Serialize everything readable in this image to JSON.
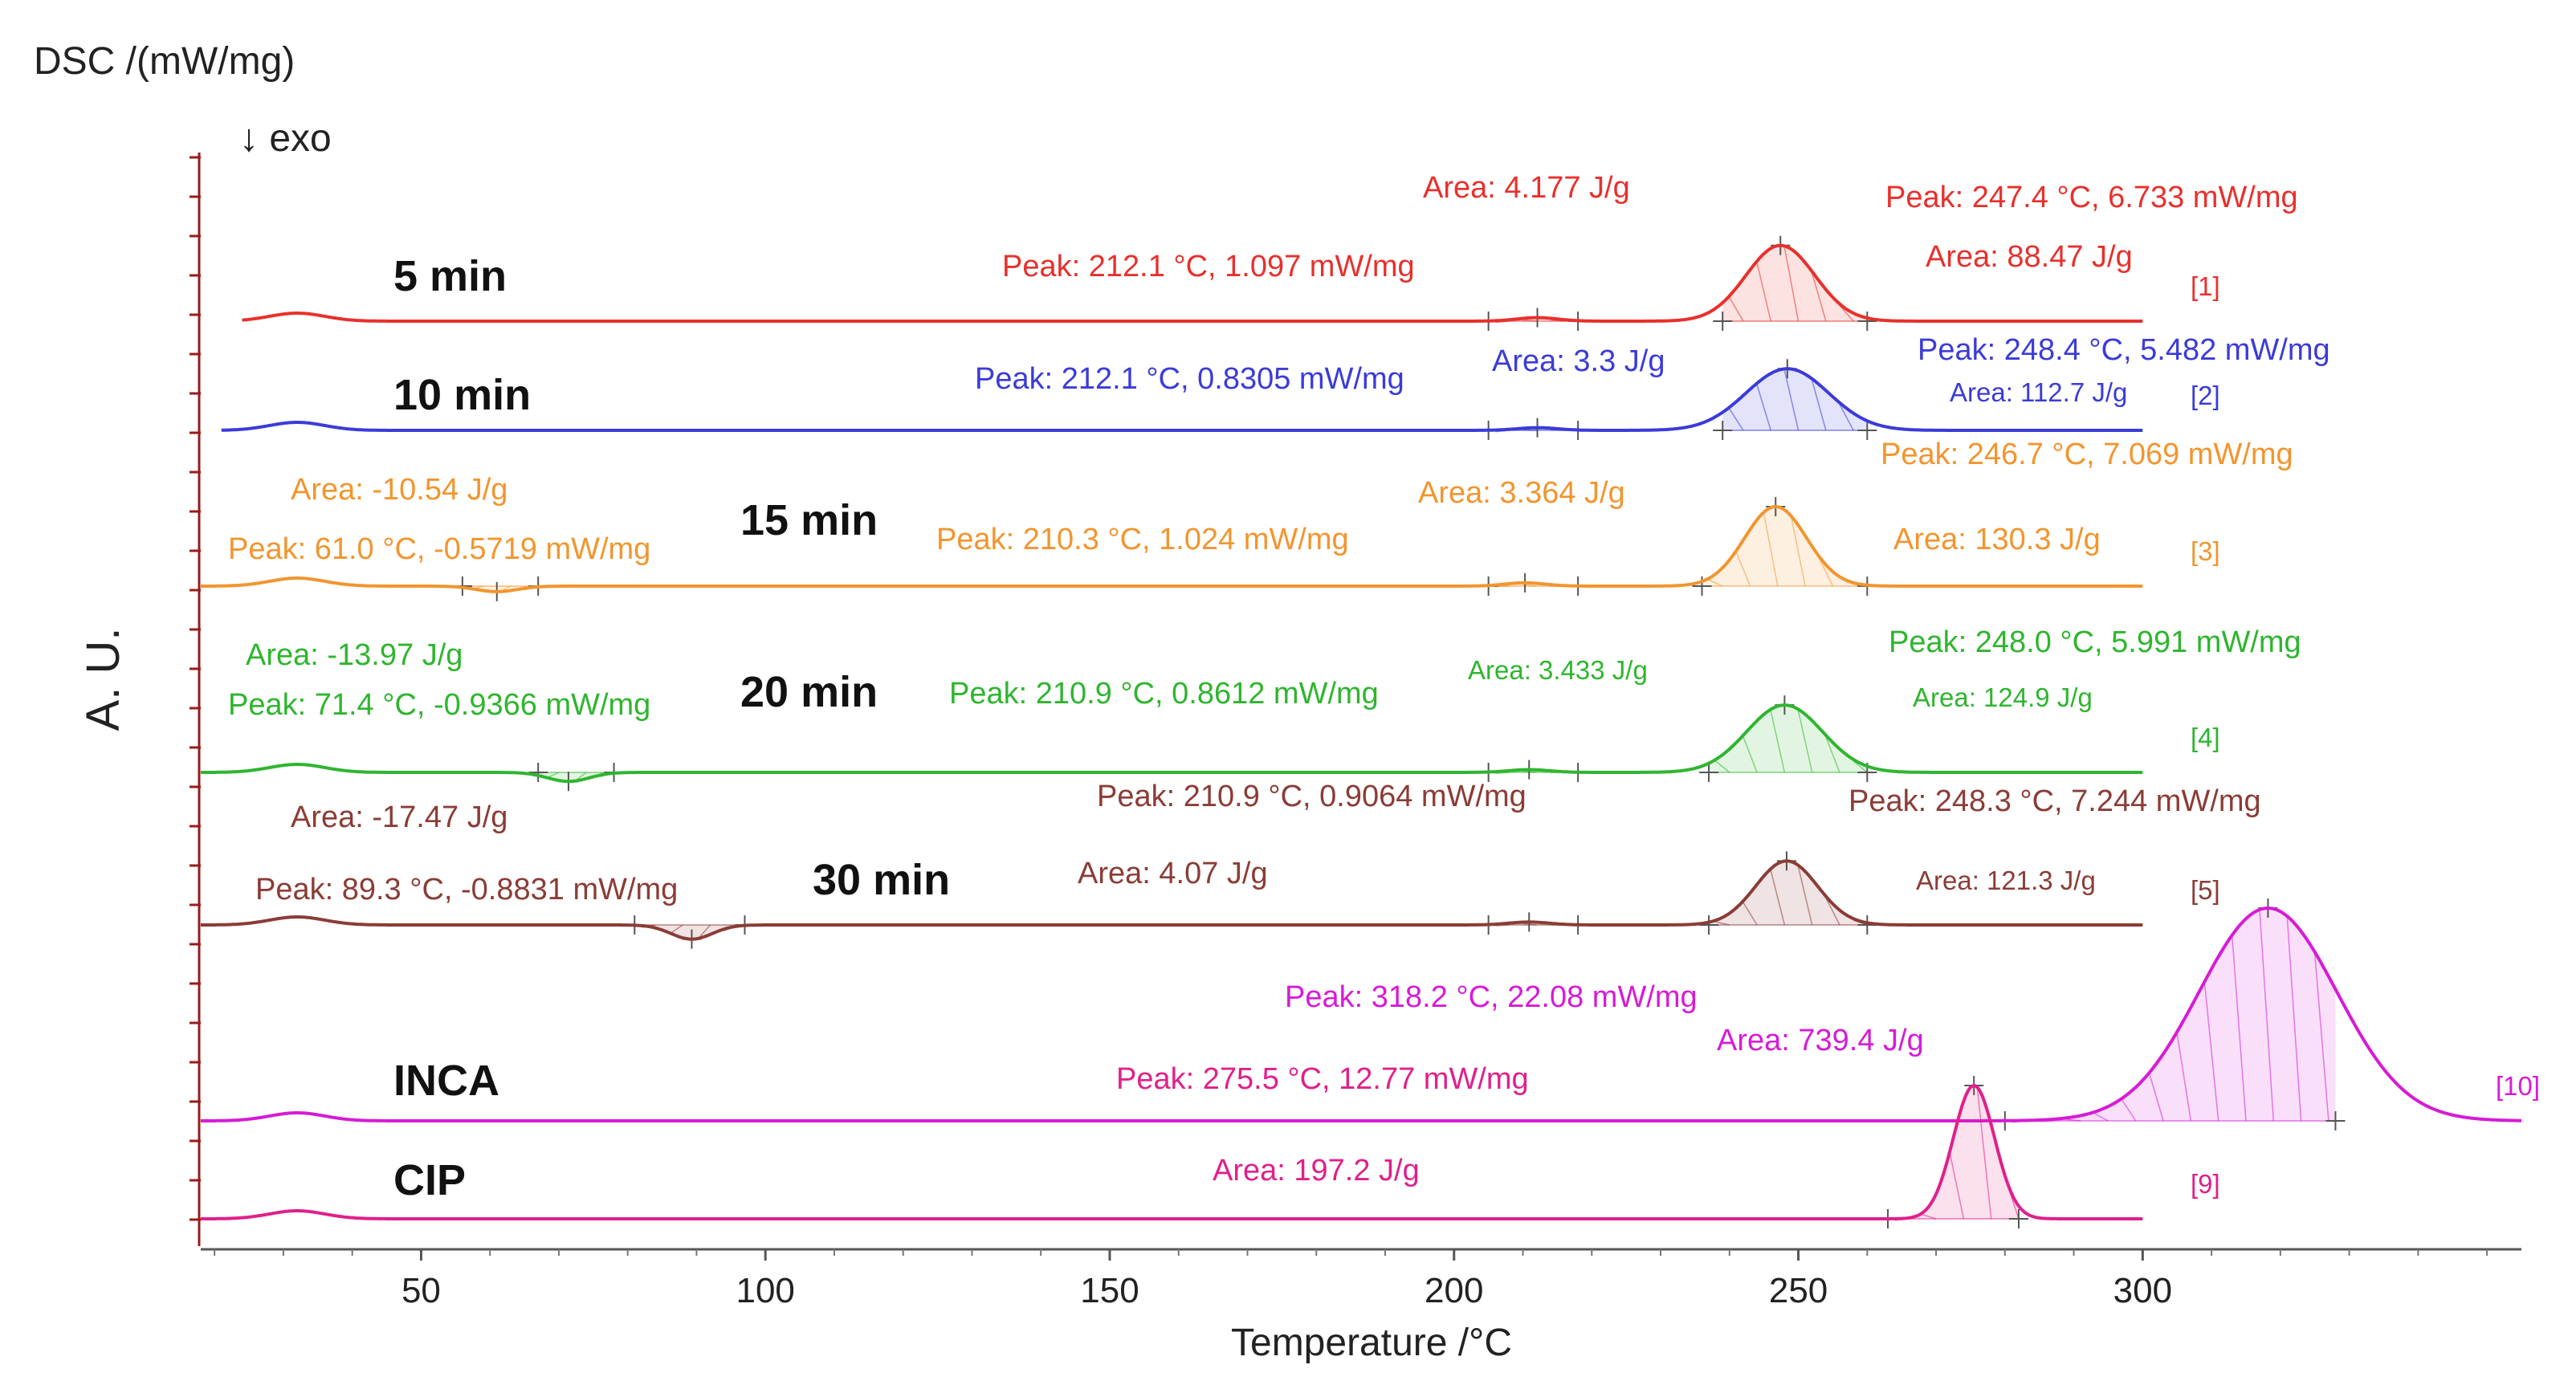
{
  "chart_data": {
    "type": "line",
    "title": "DSC /(mW/mg)",
    "subtitle": "↓ exo",
    "xlabel": "Temperature /°C",
    "ylabel": "A. U.",
    "xlim": [
      18,
      355
    ],
    "xticks": [
      50,
      100,
      150,
      200,
      250,
      300
    ],
    "colors": {
      "axis": "#9b1b1b",
      "m5": "#e8302c",
      "m10": "#3b3bd9",
      "m15": "#f2952e",
      "m20": "#2fb52f",
      "m30": "#8b3c36",
      "inca": "#d61bd6",
      "cip": "#e0208a"
    },
    "series": [
      {
        "id": "m5",
        "name": "5 min",
        "tag": "[1]",
        "x_start": 24,
        "x_end": 300,
        "baseline": 0,
        "peaks": [
          {
            "x": 212.1,
            "y": 1.097,
            "dir": "up",
            "width": 3,
            "scale": 4,
            "area_range": [
              205,
              218
            ]
          },
          {
            "x": 247.4,
            "y": 6.733,
            "dir": "up",
            "width": 5,
            "scale": 14,
            "area_range": [
              239,
              260
            ]
          }
        ],
        "annotations": [
          {
            "text": "Area: 4.177 J/g"
          },
          {
            "text": "Peak: 212.1 °C, 1.097 mW/mg"
          },
          {
            "text": "Peak: 247.4 °C, 6.733 mW/mg"
          },
          {
            "text": "Area: 88.47 J/g"
          }
        ]
      },
      {
        "id": "m10",
        "name": "10 min",
        "tag": "[2]",
        "x_start": 21,
        "x_end": 300,
        "baseline": 0,
        "peaks": [
          {
            "x": 212.1,
            "y": 0.8305,
            "dir": "up",
            "width": 3,
            "scale": 4,
            "area_range": [
              205,
              218
            ]
          },
          {
            "x": 248.4,
            "y": 5.482,
            "dir": "up",
            "width": 6,
            "scale": 14,
            "area_range": [
              239,
              260
            ]
          }
        ],
        "annotations": [
          {
            "text": "Peak: 212.1 °C, 0.8305 mW/mg"
          },
          {
            "text": "Area: 3.3 J/g"
          },
          {
            "text": "Peak: 248.4 °C, 5.482 mW/mg"
          },
          {
            "text": "Area: 112.7 J/g"
          }
        ]
      },
      {
        "id": "m15",
        "name": "15 min",
        "tag": "[3]",
        "x_start": 18,
        "x_end": 300,
        "baseline": 0,
        "peaks": [
          {
            "x": 61.0,
            "y": -0.5719,
            "dir": "down",
            "width": 3,
            "scale": 12,
            "area_range": [
              56,
              67
            ]
          },
          {
            "x": 210.3,
            "y": 1.024,
            "dir": "up",
            "width": 3,
            "scale": 4,
            "area_range": [
              205,
              218
            ]
          },
          {
            "x": 246.7,
            "y": 7.069,
            "dir": "up",
            "width": 4.5,
            "scale": 14,
            "area_range": [
              236,
              260
            ]
          }
        ],
        "annotations": [
          {
            "text": "Area: -10.54 J/g"
          },
          {
            "text": "Peak: 61.0 °C, -0.5719 mW/mg"
          },
          {
            "text": "Peak: 210.3 °C, 1.024 mW/mg"
          },
          {
            "text": "Area: 3.364 J/g"
          },
          {
            "text": "Peak: 246.7 °C, 7.069 mW/mg"
          },
          {
            "text": "Area: 130.3 J/g"
          }
        ]
      },
      {
        "id": "m20",
        "name": "20 min",
        "tag": "[4]",
        "x_start": 18,
        "x_end": 300,
        "baseline": 0,
        "peaks": [
          {
            "x": 71.4,
            "y": -0.9366,
            "dir": "down",
            "width": 3,
            "scale": 12,
            "area_range": [
              67,
              78
            ]
          },
          {
            "x": 210.9,
            "y": 0.8612,
            "dir": "up",
            "width": 3,
            "scale": 4,
            "area_range": [
              205,
              218
            ]
          },
          {
            "x": 248.0,
            "y": 5.991,
            "dir": "up",
            "width": 5.5,
            "scale": 14,
            "area_range": [
              237,
              260
            ]
          }
        ],
        "annotations": [
          {
            "text": "Area: -13.97 J/g"
          },
          {
            "text": "Peak: 71.4 °C, -0.9366 mW/mg"
          },
          {
            "text": "Peak: 210.9 °C, 0.8612 mW/mg"
          },
          {
            "text": "Area: 3.433 J/g"
          },
          {
            "text": "Peak: 248.0 °C, 5.991 mW/mg"
          },
          {
            "text": "Area: 124.9 J/g"
          }
        ]
      },
      {
        "id": "m30",
        "name": "30 min",
        "tag": "[5]",
        "x_start": 18,
        "x_end": 300,
        "baseline": 0,
        "peaks": [
          {
            "x": 89.3,
            "y": -0.8831,
            "dir": "down",
            "width": 3,
            "scale": 20,
            "area_range": [
              81,
              97
            ]
          },
          {
            "x": 210.9,
            "y": 0.9064,
            "dir": "up",
            "width": 3,
            "scale": 4,
            "area_range": [
              205,
              218
            ]
          },
          {
            "x": 248.3,
            "y": 7.244,
            "dir": "up",
            "width": 4.5,
            "scale": 11,
            "area_range": [
              237,
              260
            ]
          }
        ],
        "annotations": [
          {
            "text": "Area: -17.47 J/g"
          },
          {
            "text": "Peak: 89.3 °C, -0.8831 mW/mg"
          },
          {
            "text": "Peak: 210.9 °C, 0.9064 mW/mg"
          },
          {
            "text": "Area: 4.07 J/g"
          },
          {
            "text": "Peak: 248.3 °C, 7.244 mW/mg"
          },
          {
            "text": "Area: 121.3 J/g"
          }
        ]
      },
      {
        "id": "inca",
        "name": "INCA",
        "tag": "[10]",
        "x_start": 18,
        "x_end": 355,
        "baseline": 0,
        "peaks": [
          {
            "x": 318.2,
            "y": 22.08,
            "dir": "up",
            "width": 10,
            "scale": 12,
            "area_range": [
              280,
              328
            ]
          }
        ],
        "annotations": [
          {
            "text": "Peak: 318.2 °C, 22.08 mW/mg"
          },
          {
            "text": "Area: 739.4 J/g"
          }
        ]
      },
      {
        "id": "cip",
        "name": "CIP",
        "tag": "[9]",
        "x_start": 18,
        "x_end": 300,
        "baseline": 0,
        "peaks": [
          {
            "x": 275.5,
            "y": 12.77,
            "dir": "up",
            "width": 3,
            "scale": 13,
            "area_range": [
              263,
              282
            ]
          }
        ],
        "annotations": [
          {
            "text": "Peak: 275.5 °C, 12.77 mW/mg"
          },
          {
            "text": "Area: 197.2 J/g"
          }
        ]
      }
    ]
  }
}
